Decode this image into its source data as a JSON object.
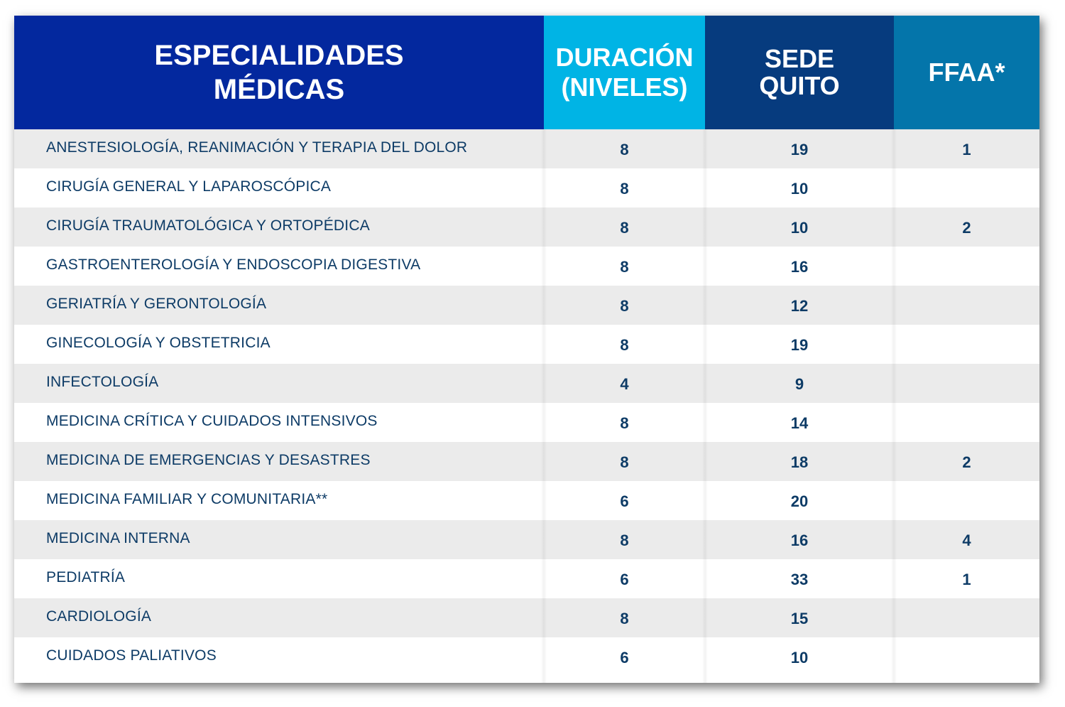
{
  "colors": {
    "header_specialties": "#03289e",
    "header_duration": "#00b4e5",
    "header_sede": "#063b7e",
    "header_ffaa": "#0475aa",
    "row_alt": "#ebebeb",
    "text": "#0d3b66"
  },
  "header": {
    "specialties": "ESPECIALIDADES\nMÉDICAS",
    "duration": "DURACIÓN\n(NIVELES)",
    "sede": "SEDE\nQUITO",
    "ffaa": "FFAA*"
  },
  "rows": [
    {
      "name": "ANESTESIOLOGÍA, REANIMACIÓN Y TERAPIA DEL DOLOR",
      "duration": "8",
      "sede": "19",
      "ffaa": "1"
    },
    {
      "name": "CIRUGÍA GENERAL Y LAPAROSCÓPICA",
      "duration": "8",
      "sede": "10",
      "ffaa": ""
    },
    {
      "name": "CIRUGÍA TRAUMATOLÓGICA Y ORTOPÉDICA",
      "duration": "8",
      "sede": "10",
      "ffaa": "2"
    },
    {
      "name": "GASTROENTEROLOGÍA Y ENDOSCOPIA DIGESTIVA",
      "duration": "8",
      "sede": "16",
      "ffaa": ""
    },
    {
      "name": "GERIATRÍA Y GERONTOLOGÍA",
      "duration": "8",
      "sede": "12",
      "ffaa": ""
    },
    {
      "name": "GINECOLOGÍA Y OBSTETRICIA",
      "duration": "8",
      "sede": "19",
      "ffaa": ""
    },
    {
      "name": "INFECTOLOGÍA",
      "duration": "4",
      "sede": "9",
      "ffaa": ""
    },
    {
      "name": "MEDICINA CRÍTICA Y CUIDADOS INTENSIVOS",
      "duration": "8",
      "sede": "14",
      "ffaa": ""
    },
    {
      "name": "MEDICINA DE EMERGENCIAS Y DESASTRES",
      "duration": "8",
      "sede": "18",
      "ffaa": "2"
    },
    {
      "name": "MEDICINA FAMILIAR Y COMUNITARIA**",
      "duration": "6",
      "sede": "20",
      "ffaa": ""
    },
    {
      "name": "MEDICINA INTERNA",
      "duration": "8",
      "sede": "16",
      "ffaa": "4"
    },
    {
      "name": "PEDIATRÍA",
      "duration": "6",
      "sede": "33",
      "ffaa": "1"
    },
    {
      "name": "CARDIOLOGÍA",
      "duration": "8",
      "sede": "15",
      "ffaa": ""
    },
    {
      "name": "CUIDADOS PALIATIVOS",
      "duration": "6",
      "sede": "10",
      "ffaa": ""
    }
  ]
}
